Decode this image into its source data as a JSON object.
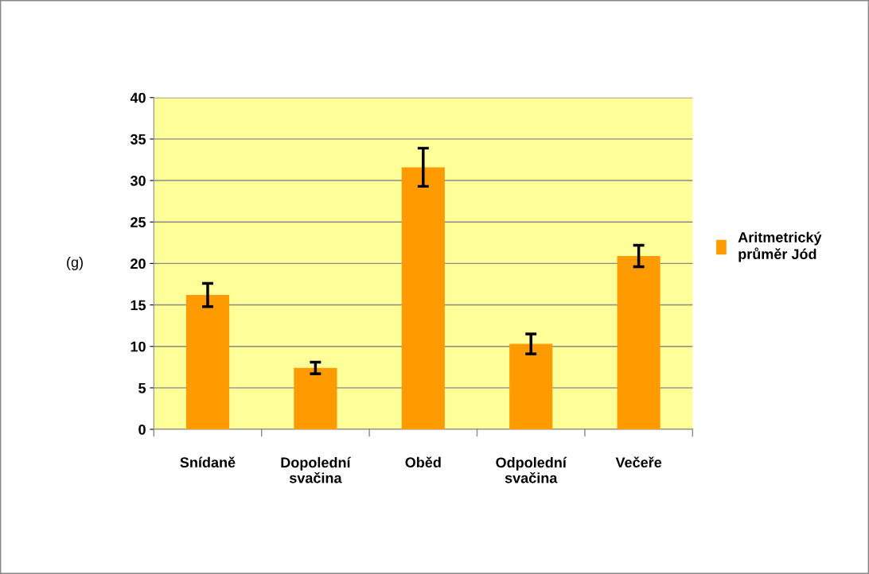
{
  "chart_data": {
    "type": "bar",
    "categories": [
      "Snídaně",
      "Dopolední\nsvačina",
      "Oběd",
      "Odpolední\nsvačina",
      "Večeře"
    ],
    "series": [
      {
        "name": "Aritmetrický\nprůměr Jód",
        "color": "#ff9a00",
        "values": [
          16.2,
          7.4,
          31.6,
          10.3,
          20.9
        ],
        "errors": [
          1.4,
          0.7,
          2.3,
          1.2,
          1.3
        ]
      }
    ],
    "ylabel": "(g)",
    "ylim": [
      0,
      40
    ],
    "yticks": [
      0,
      5,
      10,
      15,
      20,
      25,
      30,
      35,
      40
    ],
    "grid": "y",
    "legend": "right"
  }
}
